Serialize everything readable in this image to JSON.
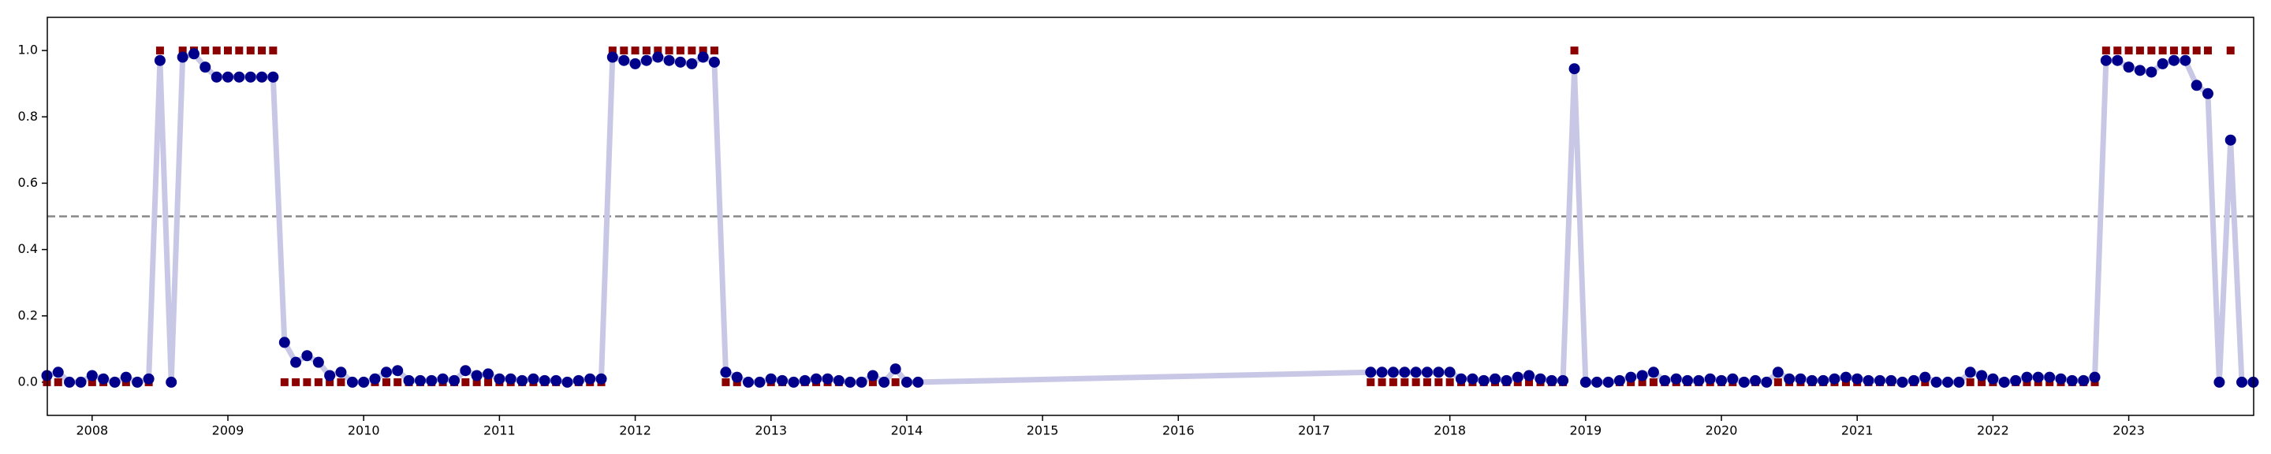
{
  "chart_data": {
    "type": "line",
    "x": [
      2007.667,
      2007.75,
      2007.833,
      2007.917,
      2008.0,
      2008.083,
      2008.167,
      2008.25,
      2008.333,
      2008.417,
      2008.5,
      2008.583,
      2008.667,
      2008.75,
      2008.833,
      2008.917,
      2009.0,
      2009.083,
      2009.167,
      2009.25,
      2009.333,
      2009.417,
      2009.5,
      2009.583,
      2009.667,
      2009.75,
      2009.833,
      2009.917,
      2010.0,
      2010.083,
      2010.167,
      2010.25,
      2010.333,
      2010.417,
      2010.5,
      2010.583,
      2010.667,
      2010.75,
      2010.833,
      2010.917,
      2011.0,
      2011.083,
      2011.167,
      2011.25,
      2011.333,
      2011.417,
      2011.5,
      2011.583,
      2011.667,
      2011.75,
      2011.833,
      2011.917,
      2012.0,
      2012.083,
      2012.167,
      2012.25,
      2012.333,
      2012.417,
      2012.5,
      2012.583,
      2012.667,
      2012.75,
      2012.833,
      2012.917,
      2013.0,
      2013.083,
      2013.167,
      2013.25,
      2013.333,
      2013.417,
      2013.5,
      2013.583,
      2013.667,
      2013.75,
      2013.833,
      2013.917,
      2014.0,
      2014.083,
      2017.417,
      2017.5,
      2017.583,
      2017.667,
      2017.75,
      2017.833,
      2017.917,
      2018.0,
      2018.083,
      2018.167,
      2018.25,
      2018.333,
      2018.417,
      2018.5,
      2018.583,
      2018.667,
      2018.75,
      2018.833,
      2018.917,
      2019.0,
      2019.083,
      2019.167,
      2019.25,
      2019.333,
      2019.417,
      2019.5,
      2019.583,
      2019.667,
      2019.75,
      2019.833,
      2019.917,
      2020.0,
      2020.083,
      2020.167,
      2020.25,
      2020.333,
      2020.417,
      2020.5,
      2020.583,
      2020.667,
      2020.75,
      2020.833,
      2020.917,
      2021.0,
      2021.083,
      2021.167,
      2021.25,
      2021.333,
      2021.417,
      2021.5,
      2021.583,
      2021.667,
      2021.75,
      2021.833,
      2021.917,
      2022.0,
      2022.083,
      2022.167,
      2022.25,
      2022.333,
      2022.417,
      2022.5,
      2022.583,
      2022.667,
      2022.75,
      2022.833,
      2022.917,
      2023.0,
      2023.083,
      2023.167,
      2023.25,
      2023.333,
      2023.417,
      2023.5,
      2023.583,
      2023.667,
      2023.75,
      2023.833,
      2023.917
    ],
    "series": [
      {
        "color": "#00008b",
        "line_color": "#c8c8e6",
        "marker": "circle",
        "line": true,
        "values": [
          0.02,
          0.03,
          0.0,
          0.0,
          0.02,
          0.01,
          0.0,
          0.015,
          0.0,
          0.01,
          0.97,
          0.0,
          0.98,
          0.99,
          0.95,
          0.92,
          0.92,
          0.92,
          0.92,
          0.92,
          0.92,
          0.12,
          0.06,
          0.08,
          0.06,
          0.02,
          0.03,
          0.0,
          0.0,
          0.01,
          0.03,
          0.035,
          0.005,
          0.005,
          0.005,
          0.01,
          0.005,
          0.035,
          0.02,
          0.025,
          0.01,
          0.01,
          0.005,
          0.01,
          0.005,
          0.005,
          0.0,
          0.005,
          0.01,
          0.01,
          0.98,
          0.97,
          0.96,
          0.97,
          0.98,
          0.97,
          0.965,
          0.96,
          0.98,
          0.965,
          0.03,
          0.015,
          0.0,
          0.0,
          0.01,
          0.005,
          0.0,
          0.005,
          0.01,
          0.01,
          0.005,
          0.0,
          0.0,
          0.02,
          0.0,
          0.04,
          0.0,
          0.0,
          0.03,
          0.03,
          0.03,
          0.03,
          0.03,
          0.03,
          0.03,
          0.03,
          0.01,
          0.01,
          0.005,
          0.01,
          0.005,
          0.015,
          0.02,
          0.01,
          0.005,
          0.005,
          0.945,
          0.0,
          0.0,
          0.0,
          0.005,
          0.015,
          0.02,
          0.03,
          0.005,
          0.01,
          0.005,
          0.005,
          0.01,
          0.005,
          0.01,
          0.0,
          0.005,
          0.0,
          0.03,
          0.01,
          0.01,
          0.005,
          0.005,
          0.01,
          0.015,
          0.01,
          0.005,
          0.005,
          0.005,
          0.0,
          0.005,
          0.015,
          0.0,
          0.0,
          0.0,
          0.03,
          0.02,
          0.01,
          0.0,
          0.005,
          0.015,
          0.015,
          0.015,
          0.01,
          0.005,
          0.005,
          0.015,
          0.97,
          0.97,
          0.95,
          0.94,
          0.935,
          0.96,
          0.97,
          0.97,
          0.895,
          0.87,
          0.0,
          0.73,
          0.0,
          0.0
        ]
      },
      {
        "color": "#8b0000",
        "marker": "square",
        "line": false,
        "values": [
          0,
          0,
          0,
          0,
          0,
          0,
          0,
          0,
          0,
          0,
          1,
          0,
          1,
          1,
          1,
          1,
          1,
          1,
          1,
          1,
          1,
          0,
          0,
          0,
          0,
          0,
          0,
          0,
          0,
          0,
          0,
          0,
          0,
          0,
          0,
          0,
          0,
          0,
          0,
          0,
          0,
          0,
          0,
          0,
          0,
          0,
          0,
          0,
          0,
          0,
          1,
          1,
          1,
          1,
          1,
          1,
          1,
          1,
          1,
          1,
          0,
          0,
          0,
          0,
          0,
          0,
          0,
          0,
          0,
          0,
          0,
          0,
          0,
          0,
          0,
          0,
          0,
          0,
          0,
          0,
          0,
          0,
          0,
          0,
          0,
          0,
          0,
          0,
          0,
          0,
          0,
          0,
          0,
          0,
          0,
          0,
          1,
          0,
          0,
          0,
          0,
          0,
          0,
          0,
          0,
          0,
          0,
          0,
          0,
          0,
          0,
          0,
          0,
          0,
          0,
          0,
          0,
          0,
          0,
          0,
          0,
          0,
          0,
          0,
          0,
          0,
          0,
          0,
          0,
          0,
          0,
          0,
          0,
          0,
          0,
          0,
          0,
          0,
          0,
          0,
          0,
          0,
          0,
          1,
          1,
          1,
          1,
          1,
          1,
          1,
          1,
          1,
          1,
          0,
          1,
          0,
          0
        ]
      }
    ],
    "reference_line": 0.5,
    "xlim": [
      2007.67,
      2023.92
    ],
    "xticks": [
      2008,
      2009,
      2010,
      2011,
      2012,
      2013,
      2014,
      2015,
      2016,
      2017,
      2018,
      2019,
      2020,
      2021,
      2022,
      2023
    ],
    "ylim": [
      -0.1,
      1.1
    ],
    "yticks": [
      {
        "value": 0,
        "label": "0.0"
      },
      0.2,
      0.4,
      0.6,
      0.8,
      {
        "value": 1,
        "label": "1.0"
      }
    ]
  }
}
